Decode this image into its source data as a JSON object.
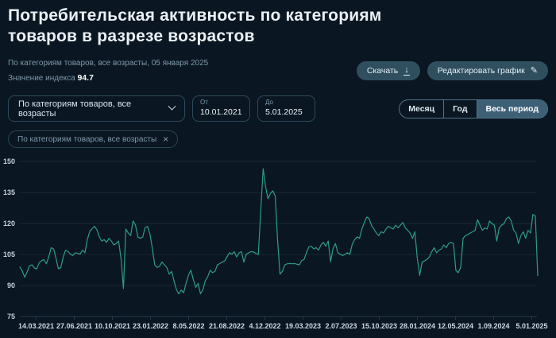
{
  "page": {
    "title": "Потребительская активность по категориям товаров в разрезе возрастов"
  },
  "meta": {
    "subtitle": "По категориям товаров, все возрасты, 05 января 2025",
    "index_label": "Значение индекса",
    "index_value": "94.7"
  },
  "toolbar": {
    "download_label": "Скачать",
    "edit_label": "Редактировать график"
  },
  "filters": {
    "category_select": {
      "value": "По категориям товаров, все возрасты"
    },
    "date_from": {
      "label": "От",
      "value": "10.01.2021"
    },
    "date_to": {
      "label": "До",
      "value": "5.01.2025"
    },
    "period_tabs": [
      {
        "label": "Месяц",
        "selected": false
      },
      {
        "label": "Год",
        "selected": false
      },
      {
        "label": "Весь период",
        "selected": true
      }
    ],
    "chip": {
      "label": "По категориям товаров, все возрасты",
      "close_icon": "×"
    }
  },
  "chart_data": {
    "type": "line",
    "series_name": "По категориям товаров, все возрасты",
    "x_start": "10.01.2021",
    "x_end": "5.01.2025",
    "x_tick_labels": [
      "14.03.2021",
      "27.06.2021",
      "10.10.2021",
      "23.01.2022",
      "8.05.2022",
      "21.08.2022",
      "4.12.2022",
      "19.03.2023",
      "2.07.2023",
      "15.10.2023",
      "28.01.2024",
      "12.05.2024",
      "1.09.2024",
      "5.01.2025"
    ],
    "y_ticks": [
      75,
      90,
      105,
      120,
      135,
      150
    ],
    "ylim": [
      75,
      150
    ],
    "grid": true,
    "legend": false,
    "line_color": "#2e9c8a",
    "grid_color": "#152a37",
    "axis_color": "#23394a",
    "y_label_color": "#c2d0da",
    "x_label_color": "#ccd9e2",
    "values": [
      99,
      97,
      94,
      96.5,
      99.5,
      100,
      98.5,
      98,
      101,
      102,
      102.5,
      100.5,
      103.8,
      108.3,
      107.7,
      103.2,
      98.1,
      98.7,
      103.8,
      107.1,
      106.4,
      105.1,
      104.5,
      105.8,
      105.5,
      105.1,
      107.1,
      105.8,
      112.2,
      116,
      117.5,
      118.6,
      117,
      113.5,
      111.5,
      112.2,
      110.9,
      112.8,
      111.5,
      109.6,
      110.3,
      111.5,
      103,
      88.5,
      117.3,
      115.4,
      114.1,
      121.2,
      119.2,
      113.5,
      112.8,
      113.5,
      118,
      118.6,
      114.8,
      108,
      100,
      98.7,
      99.4,
      101.3,
      100,
      98.7,
      95.5,
      96.8,
      92.3,
      88,
      86,
      87.8,
      86.5,
      91,
      95,
      97.4,
      93,
      89.1,
      91,
      86,
      88,
      92.3,
      94.2,
      97.4,
      96.2,
      96.8,
      100,
      100.6,
      101.3,
      101.9,
      103.8,
      105.8,
      105.1,
      106.4,
      103.8,
      105.8,
      106.4,
      101.3,
      105.1,
      105.8,
      106.4,
      106.2,
      105.5,
      105,
      126.3,
      146.5,
      138,
      132,
      134.5,
      135.8,
      133.3,
      112,
      95.5,
      96.8,
      100,
      100.5,
      100.6,
      100.5,
      100.6,
      100.3,
      100,
      102,
      102.6,
      106,
      108.7,
      109,
      107.7,
      108.3,
      107.1,
      109.6,
      110.9,
      109,
      111.5,
      101.5,
      107.7,
      110.3,
      105.8,
      105.1,
      104.5,
      105.1,
      105.8,
      105.1,
      110,
      112.2,
      113.5,
      112.8,
      117.3,
      120.5,
      123.1,
      122.4,
      119,
      117.3,
      115.4,
      114.1,
      116,
      115.4,
      117.3,
      118.6,
      117.9,
      117.3,
      119.2,
      117.9,
      119.2,
      120.5,
      118,
      116.7,
      115.4,
      112.8,
      116,
      103,
      94.9,
      101.3,
      101.9,
      102.6,
      103.8,
      106.4,
      108.3,
      105.8,
      107.1,
      107.7,
      109.6,
      108.3,
      110.3,
      110.9,
      110.3,
      97.4,
      96.2,
      98.7,
      112.8,
      114.1,
      114.7,
      115.4,
      116,
      116.7,
      121.8,
      119.2,
      116.7,
      117.9,
      117.3,
      121.2,
      119.9,
      119.2,
      111.5,
      117.9,
      119.2,
      119.9,
      122.4,
      123.1,
      121.2,
      116.7,
      115.4,
      110.3,
      114.1,
      116,
      112.8,
      116.7,
      115.4,
      124.4,
      123.7,
      94.7
    ]
  }
}
